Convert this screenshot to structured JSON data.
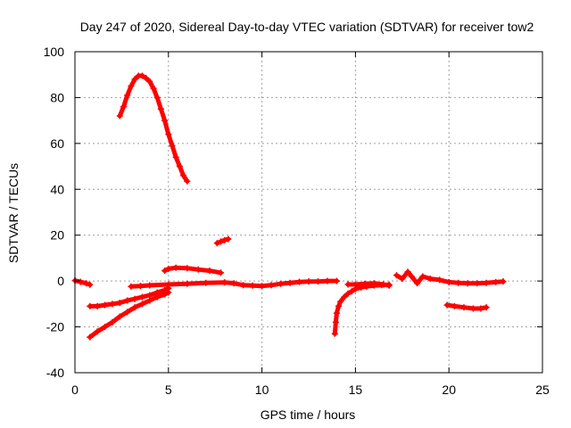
{
  "chart_data": {
    "type": "scatter",
    "title": "Day 247 of 2020, Sidereal Day-to-day VTEC variation (SDTVAR) for receiver tow2",
    "xlabel": "GPS time / hours",
    "ylabel": "SDTVAR / TECUs",
    "xlim": [
      0,
      25
    ],
    "ylim": [
      -40,
      100
    ],
    "xticks": [
      "0",
      "5",
      "10",
      "15",
      "20",
      "25"
    ],
    "yticks": [
      "-40",
      "-20",
      "0",
      "20",
      "40",
      "60",
      "80",
      "100"
    ],
    "grid": true,
    "marker": "+",
    "color": "#ff0000",
    "series": [
      {
        "name": "arc-high",
        "points": [
          [
            2.4,
            72
          ],
          [
            2.6,
            76
          ],
          [
            2.8,
            81
          ],
          [
            3.0,
            85
          ],
          [
            3.2,
            88
          ],
          [
            3.4,
            89.5
          ],
          [
            3.6,
            89.5
          ],
          [
            3.8,
            88.5
          ],
          [
            4.0,
            87
          ],
          [
            4.2,
            84
          ],
          [
            4.4,
            80
          ],
          [
            4.6,
            75
          ],
          [
            4.8,
            70
          ],
          [
            5.0,
            64
          ],
          [
            5.2,
            59
          ],
          [
            5.4,
            54
          ],
          [
            5.6,
            50
          ],
          [
            5.8,
            46
          ],
          [
            6.0,
            43.5
          ]
        ]
      },
      {
        "name": "short-high",
        "points": [
          [
            7.6,
            16.5
          ],
          [
            7.8,
            17.2
          ],
          [
            8.0,
            17.8
          ],
          [
            8.2,
            18.3
          ]
        ]
      },
      {
        "name": "arc-mid",
        "points": [
          [
            4.8,
            4.5
          ],
          [
            5.0,
            5.3
          ],
          [
            5.4,
            5.8
          ],
          [
            6.0,
            5.6
          ],
          [
            6.6,
            5.0
          ],
          [
            7.2,
            4.5
          ],
          [
            7.8,
            3.6
          ]
        ]
      },
      {
        "name": "start",
        "points": [
          [
            0.0,
            0.2
          ],
          [
            0.3,
            -0.4
          ],
          [
            0.6,
            -1.0
          ],
          [
            0.8,
            -1.6
          ]
        ]
      },
      {
        "name": "long-zero",
        "points": [
          [
            3.0,
            -2.4
          ],
          [
            3.5,
            -2.2
          ],
          [
            4.0,
            -1.9
          ],
          [
            5.0,
            -1.5
          ],
          [
            6.0,
            -1.2
          ],
          [
            7.0,
            -0.8
          ],
          [
            8.0,
            -0.6
          ],
          [
            8.5,
            -1.0
          ],
          [
            9.0,
            -1.8
          ],
          [
            9.5,
            -2.0
          ],
          [
            10.0,
            -2.2
          ],
          [
            10.5,
            -1.8
          ],
          [
            11.0,
            -1.2
          ],
          [
            11.5,
            -0.8
          ],
          [
            12.0,
            -0.4
          ],
          [
            12.5,
            -0.2
          ],
          [
            13.0,
            -0.2
          ],
          [
            13.5,
            0.0
          ],
          [
            14.0,
            0.0
          ]
        ]
      },
      {
        "name": "diag-upper",
        "points": [
          [
            0.8,
            -11
          ],
          [
            1.2,
            -11
          ],
          [
            1.6,
            -10.5
          ],
          [
            2.0,
            -10
          ],
          [
            2.4,
            -9.5
          ],
          [
            2.8,
            -8.5
          ],
          [
            3.2,
            -7.8
          ],
          [
            3.6,
            -7.0
          ],
          [
            4.0,
            -6.2
          ],
          [
            4.4,
            -5.0
          ],
          [
            4.8,
            -4.0
          ],
          [
            5.0,
            -3.2
          ]
        ]
      },
      {
        "name": "diag-lower",
        "points": [
          [
            0.8,
            -24.5
          ],
          [
            1.2,
            -22
          ],
          [
            1.6,
            -20
          ],
          [
            2.0,
            -18
          ],
          [
            2.4,
            -15.5
          ],
          [
            2.8,
            -13.5
          ],
          [
            3.2,
            -11.5
          ],
          [
            3.6,
            -10
          ],
          [
            4.0,
            -8.5
          ],
          [
            4.4,
            -7.0
          ],
          [
            4.8,
            -5.8
          ],
          [
            5.0,
            -5.0
          ]
        ]
      },
      {
        "name": "dip-15h",
        "points": [
          [
            13.9,
            -23
          ],
          [
            13.95,
            -18
          ],
          [
            14.0,
            -14
          ],
          [
            14.1,
            -11
          ],
          [
            14.2,
            -9
          ],
          [
            14.4,
            -7
          ],
          [
            14.6,
            -5.5
          ],
          [
            14.8,
            -4.5
          ],
          [
            15.0,
            -3.5
          ],
          [
            15.3,
            -2.8
          ],
          [
            15.6,
            -2.4
          ],
          [
            16.0,
            -2.0
          ],
          [
            16.4,
            -1.8
          ],
          [
            16.8,
            -1.6
          ]
        ]
      },
      {
        "name": "band-15h",
        "points": [
          [
            14.6,
            -1.5
          ],
          [
            15.0,
            -1.5
          ],
          [
            15.5,
            -1.2
          ],
          [
            16.0,
            -1.0
          ],
          [
            16.5,
            -1.5
          ],
          [
            16.8,
            -2.0
          ]
        ]
      },
      {
        "name": "late",
        "points": [
          [
            17.2,
            2.5
          ],
          [
            17.5,
            1.0
          ],
          [
            17.8,
            4.0
          ],
          [
            18.0,
            2.0
          ],
          [
            18.3,
            -1.0
          ],
          [
            18.6,
            2.0
          ],
          [
            19.0,
            1.0
          ],
          [
            19.5,
            0.5
          ],
          [
            20.0,
            -0.5
          ],
          [
            20.5,
            -0.8
          ],
          [
            21.0,
            -1.0
          ],
          [
            21.5,
            -1.0
          ],
          [
            22.0,
            -0.8
          ],
          [
            22.5,
            -0.5
          ],
          [
            22.9,
            -0.2
          ]
        ]
      },
      {
        "name": "late-low",
        "points": [
          [
            19.9,
            -10.5
          ],
          [
            20.3,
            -11
          ],
          [
            20.8,
            -11.5
          ],
          [
            21.3,
            -12
          ],
          [
            21.7,
            -12
          ],
          [
            22.0,
            -11.5
          ]
        ]
      }
    ]
  }
}
